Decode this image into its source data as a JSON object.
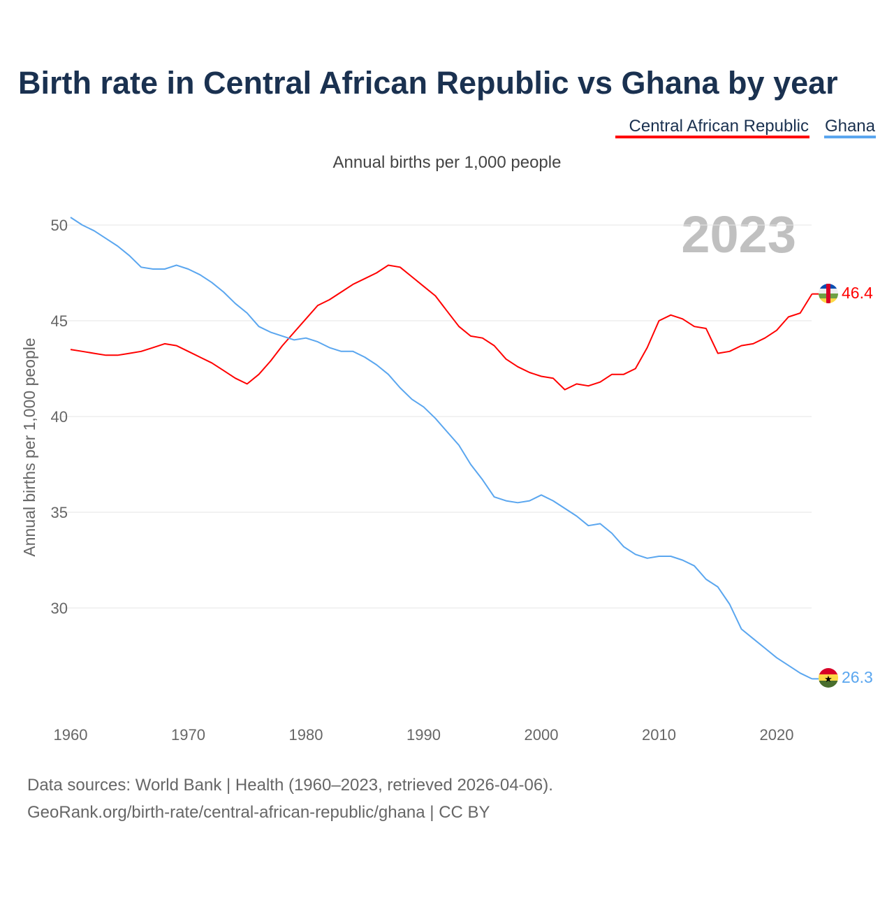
{
  "chart_data": {
    "type": "line",
    "title": "Birth rate in Central African Republic vs Ghana by year",
    "subtitle": "Annual births per 1,000 people",
    "ylabel": "Annual births per 1,000 people",
    "xlabel": "",
    "ylim": [
      25,
      51.5
    ],
    "xlim": [
      1960,
      2023
    ],
    "yticks": [
      30,
      35,
      40,
      45,
      50
    ],
    "xticks": [
      1960,
      1970,
      1980,
      1990,
      2000,
      2010,
      2020
    ],
    "grid": true,
    "legend_placement": "top-right",
    "year_label": "2023",
    "x": [
      1960,
      1961,
      1962,
      1963,
      1964,
      1965,
      1966,
      1967,
      1968,
      1969,
      1970,
      1971,
      1972,
      1973,
      1974,
      1975,
      1976,
      1977,
      1978,
      1979,
      1980,
      1981,
      1982,
      1983,
      1984,
      1985,
      1986,
      1987,
      1988,
      1989,
      1990,
      1991,
      1992,
      1993,
      1994,
      1995,
      1996,
      1997,
      1998,
      1999,
      2000,
      2001,
      2002,
      2003,
      2004,
      2005,
      2006,
      2007,
      2008,
      2009,
      2010,
      2011,
      2012,
      2013,
      2014,
      2015,
      2016,
      2017,
      2018,
      2019,
      2020,
      2021,
      2022,
      2023
    ],
    "series": [
      {
        "name": "Central African Republic",
        "color": "#ff0000",
        "end_label": "46.4",
        "values": [
          43.5,
          43.4,
          43.3,
          43.2,
          43.2,
          43.3,
          43.4,
          43.6,
          43.8,
          43.7,
          43.4,
          43.1,
          42.8,
          42.4,
          42.0,
          41.7,
          42.2,
          42.9,
          43.7,
          44.4,
          45.1,
          45.8,
          46.1,
          46.5,
          46.9,
          47.2,
          47.5,
          47.9,
          47.8,
          47.3,
          46.8,
          46.3,
          45.5,
          44.7,
          44.2,
          44.1,
          43.7,
          43.0,
          42.6,
          42.3,
          42.1,
          42.0,
          41.4,
          41.7,
          41.6,
          41.8,
          42.2,
          42.2,
          42.5,
          43.6,
          45.0,
          45.3,
          45.1,
          44.7,
          44.6,
          43.3,
          43.4,
          43.7,
          43.8,
          44.1,
          44.5,
          45.2,
          45.4,
          46.4
        ]
      },
      {
        "name": "Ghana",
        "color": "#5aa6ef",
        "end_label": "26.3",
        "values": [
          50.4,
          50.0,
          49.7,
          49.3,
          48.9,
          48.4,
          47.8,
          47.7,
          47.7,
          47.9,
          47.7,
          47.4,
          47.0,
          46.5,
          45.9,
          45.4,
          44.7,
          44.4,
          44.2,
          44.0,
          44.1,
          43.9,
          43.6,
          43.4,
          43.4,
          43.1,
          42.7,
          42.2,
          41.5,
          40.9,
          40.5,
          39.9,
          39.2,
          38.5,
          37.5,
          36.7,
          35.8,
          35.6,
          35.5,
          35.6,
          35.9,
          35.6,
          35.2,
          34.8,
          34.3,
          34.4,
          33.9,
          33.2,
          32.8,
          32.6,
          32.7,
          32.7,
          32.5,
          32.2,
          31.5,
          31.1,
          30.2,
          28.9,
          28.4,
          27.9,
          27.4,
          27.0,
          26.6,
          26.3
        ]
      }
    ]
  },
  "footer": {
    "line1": "Data sources: World Bank | Health (1960–2023, retrieved 2026-04-06).",
    "line2": "GeoRank.org/birth-rate/central-african-republic/ghana | CC BY"
  }
}
